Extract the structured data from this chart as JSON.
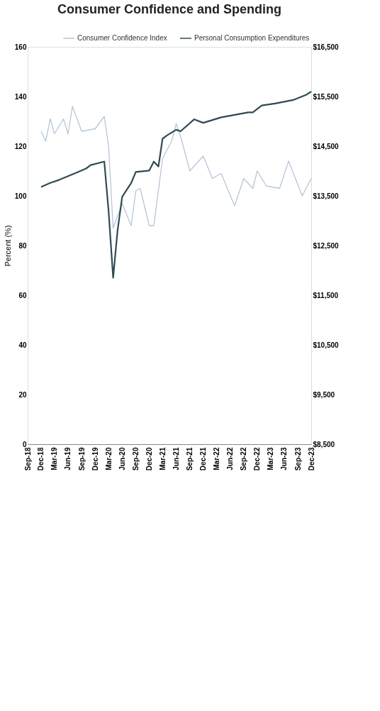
{
  "chart_data": {
    "type": "line",
    "title": "Consumer Confidence and Spending",
    "ylabel": "Percent (%)",
    "legend": "top",
    "xlim": [
      "2018-09",
      "2023-12"
    ],
    "xticks": [
      {
        "value": "2018-09",
        "label": "Sep-18"
      },
      {
        "value": "2018-12",
        "label": "Dec-18"
      },
      {
        "value": "2019-03",
        "label": "Mar-19"
      },
      {
        "value": "2019-06",
        "label": "Jun-19"
      },
      {
        "value": "2019-09",
        "label": "Sep-19"
      },
      {
        "value": "2019-12",
        "label": "Dec-19"
      },
      {
        "value": "2020-03",
        "label": "Mar-20"
      },
      {
        "value": "2020-06",
        "label": "Jun-20"
      },
      {
        "value": "2020-09",
        "label": "Sep-20"
      },
      {
        "value": "2020-12",
        "label": "Dec-20"
      },
      {
        "value": "2021-03",
        "label": "Mar-21"
      },
      {
        "value": "2021-06",
        "label": "Jun-21"
      },
      {
        "value": "2021-09",
        "label": "Sep-21"
      },
      {
        "value": "2021-12",
        "label": "Dec-21"
      },
      {
        "value": "2022-03",
        "label": "Mar-22"
      },
      {
        "value": "2022-06",
        "label": "Jun-22"
      },
      {
        "value": "2022-09",
        "label": "Sep-22"
      },
      {
        "value": "2022-12",
        "label": "Dec-22"
      },
      {
        "value": "2023-03",
        "label": "Mar-23"
      },
      {
        "value": "2023-06",
        "label": "Jun-23"
      },
      {
        "value": "2023-09",
        "label": "Sep-23"
      },
      {
        "value": "2023-12",
        "label": "Dec-23"
      }
    ],
    "ylim": [
      0,
      160
    ],
    "yticks": [
      0,
      20,
      40,
      60,
      80,
      100,
      120,
      140,
      160
    ],
    "y2lim": [
      8500,
      16500
    ],
    "y2ticks": [
      {
        "value": 8500,
        "label": "$8,500"
      },
      {
        "value": 9500,
        "label": "$9,500"
      },
      {
        "value": 10500,
        "label": "$10,500"
      },
      {
        "value": 11500,
        "label": "$11,500"
      },
      {
        "value": 12500,
        "label": "$12,500"
      },
      {
        "value": 13500,
        "label": "$13,500"
      },
      {
        "value": 14500,
        "label": "$14,500"
      },
      {
        "value": 15500,
        "label": "$15,500"
      },
      {
        "value": 16500,
        "label": "$16,500"
      }
    ],
    "series": [
      {
        "name": "Consumer Confidence Index",
        "color": "#b7c6d9",
        "x": [
          "2018-12",
          "2019-01",
          "2019-02",
          "2019-03",
          "2019-05",
          "2019-06",
          "2019-07",
          "2019-09",
          "2019-12",
          "2020-02",
          "2020-03",
          "2020-04",
          "2020-06",
          "2020-08",
          "2020-09",
          "2020-10",
          "2020-12",
          "2021-01",
          "2021-03",
          "2021-05",
          "2021-06",
          "2021-07",
          "2021-09",
          "2021-12",
          "2022-02",
          "2022-04",
          "2022-07",
          "2022-09",
          "2022-11",
          "2022-12",
          "2023-02",
          "2023-05",
          "2023-07",
          "2023-10",
          "2023-12"
        ],
        "values": [
          126,
          122,
          131,
          125,
          131,
          125,
          136,
          126,
          127,
          132,
          120,
          87,
          97,
          88,
          102,
          103,
          88,
          88,
          115,
          122,
          129,
          124,
          110,
          116,
          107,
          109,
          96,
          107,
          103,
          110,
          104,
          103,
          114,
          100,
          107
        ]
      },
      {
        "name": "Personal Consumption Expenditures",
        "color": "#2f4b53",
        "axis": "y2",
        "x": [
          "2018-12",
          "2019-02",
          "2019-04",
          "2019-08",
          "2019-10",
          "2019-11",
          "2020-02",
          "2020-03",
          "2020-04",
          "2020-05",
          "2020-06",
          "2020-08",
          "2020-09",
          "2020-12",
          "2021-01",
          "2021-02",
          "2021-03",
          "2021-04",
          "2021-06",
          "2021-07",
          "2021-10",
          "2021-12",
          "2022-04",
          "2022-10",
          "2022-11",
          "2023-01",
          "2023-04",
          "2023-08",
          "2023-11",
          "2023-12"
        ],
        "values": [
          13680,
          13760,
          13820,
          13970,
          14050,
          14120,
          14190,
          13200,
          11850,
          12810,
          13480,
          13760,
          13980,
          14010,
          14190,
          14090,
          14650,
          14720,
          14830,
          14800,
          15040,
          14970,
          15080,
          15180,
          15180,
          15320,
          15360,
          15430,
          15540,
          15600
        ]
      }
    ]
  }
}
